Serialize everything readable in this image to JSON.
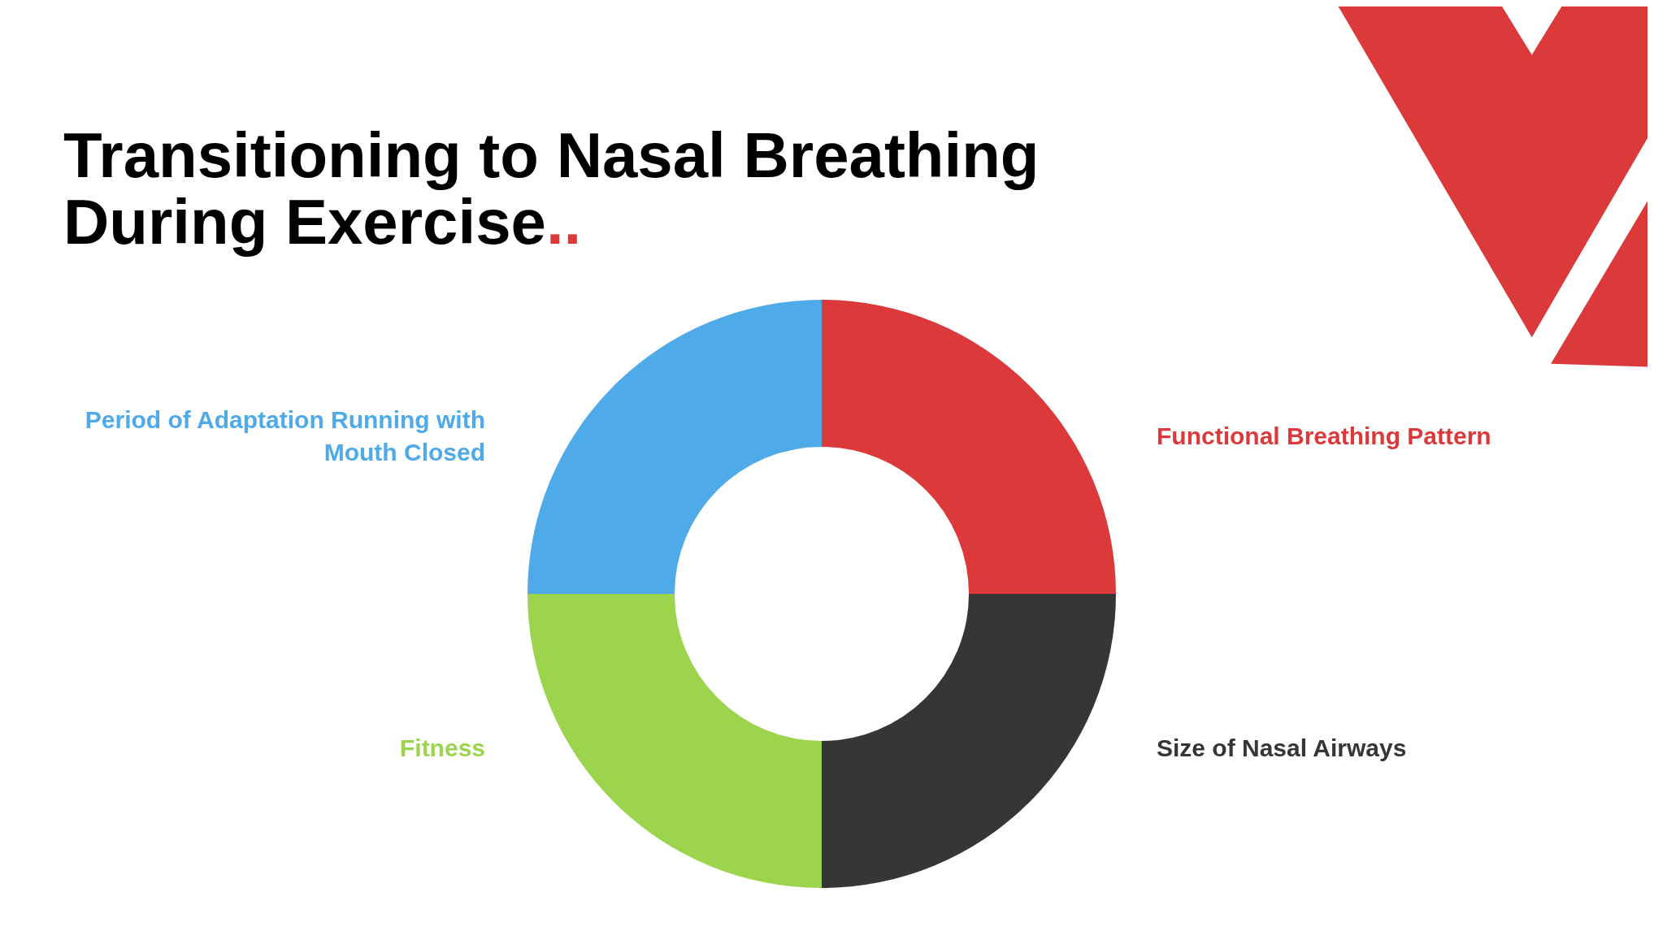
{
  "chart_data": {
    "type": "donut",
    "title": "Transitioning to Nasal Breathing During Exercise..",
    "categories": [
      "Functional Breathing Pattern",
      "Size of Nasal Airways",
      "Fitness",
      "Period of Adaptation Running with Mouth Closed"
    ],
    "values": [
      25,
      25,
      25,
      25
    ],
    "colors": [
      "#dc3a3a",
      "#363636",
      "#9dd44e",
      "#4eaae8"
    ],
    "legend": false
  }
}
